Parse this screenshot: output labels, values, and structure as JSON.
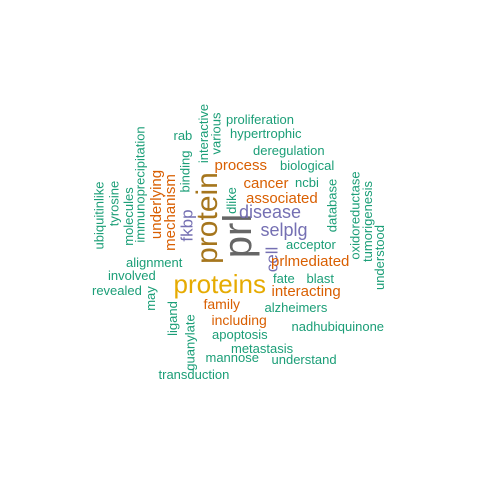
{
  "colors": {
    "background": "#ffffff",
    "teal": "#1b9e77",
    "orange": "#d95f02",
    "purple": "#7570b3",
    "gold": "#e6ab02",
    "brown": "#a6761d",
    "gray": "#666666"
  },
  "words": [
    {
      "text": "prl",
      "color": "#666666"
    },
    {
      "text": "protein",
      "color": "#a6761d"
    },
    {
      "text": "proteins",
      "color": "#e6ab02"
    },
    {
      "text": "disease",
      "color": "#7570b3"
    },
    {
      "text": "selplg",
      "color": "#7570b3"
    },
    {
      "text": "fkbp",
      "color": "#7570b3"
    },
    {
      "text": "cell",
      "color": "#7570b3"
    },
    {
      "text": "process",
      "color": "#d95f02"
    },
    {
      "text": "cancer",
      "color": "#d95f02"
    },
    {
      "text": "associated",
      "color": "#d95f02"
    },
    {
      "text": "underlying",
      "color": "#d95f02"
    },
    {
      "text": "mechanism",
      "color": "#d95f02"
    },
    {
      "text": "prlmediated",
      "color": "#d95f02"
    },
    {
      "text": "interacting",
      "color": "#d95f02"
    },
    {
      "text": "family",
      "color": "#d95f02"
    },
    {
      "text": "including",
      "color": "#d95f02"
    },
    {
      "text": "proliferation",
      "color": "#1b9e77"
    },
    {
      "text": "hypertrophic",
      "color": "#1b9e77"
    },
    {
      "text": "rab",
      "color": "#1b9e77"
    },
    {
      "text": "interactive",
      "color": "#1b9e77"
    },
    {
      "text": "various",
      "color": "#1b9e77"
    },
    {
      "text": "deregulation",
      "color": "#1b9e77"
    },
    {
      "text": "biological",
      "color": "#1b9e77"
    },
    {
      "text": "immunoprecipitation",
      "color": "#1b9e77"
    },
    {
      "text": "binding",
      "color": "#1b9e77"
    },
    {
      "text": "ncbi",
      "color": "#1b9e77"
    },
    {
      "text": "dlike",
      "color": "#1b9e77"
    },
    {
      "text": "database",
      "color": "#1b9e77"
    },
    {
      "text": "oxidoreductase",
      "color": "#1b9e77"
    },
    {
      "text": "tumorigenesis",
      "color": "#1b9e77"
    },
    {
      "text": "understood",
      "color": "#1b9e77"
    },
    {
      "text": "ubiquitinlike",
      "color": "#1b9e77"
    },
    {
      "text": "tyrosine",
      "color": "#1b9e77"
    },
    {
      "text": "molecules",
      "color": "#1b9e77"
    },
    {
      "text": "acceptor",
      "color": "#1b9e77"
    },
    {
      "text": "alignment",
      "color": "#1b9e77"
    },
    {
      "text": "involved",
      "color": "#1b9e77"
    },
    {
      "text": "revealed",
      "color": "#1b9e77"
    },
    {
      "text": "may",
      "color": "#1b9e77"
    },
    {
      "text": "fate",
      "color": "#1b9e77"
    },
    {
      "text": "blast",
      "color": "#1b9e77"
    },
    {
      "text": "alzheimers",
      "color": "#1b9e77"
    },
    {
      "text": "ligand",
      "color": "#1b9e77"
    },
    {
      "text": "guanylate",
      "color": "#1b9e77"
    },
    {
      "text": "nadhubiquinone",
      "color": "#1b9e77"
    },
    {
      "text": "apoptosis",
      "color": "#1b9e77"
    },
    {
      "text": "metastasis",
      "color": "#1b9e77"
    },
    {
      "text": "mannose",
      "color": "#1b9e77"
    },
    {
      "text": "understand",
      "color": "#1b9e77"
    },
    {
      "text": "transduction",
      "color": "#1b9e77"
    }
  ]
}
